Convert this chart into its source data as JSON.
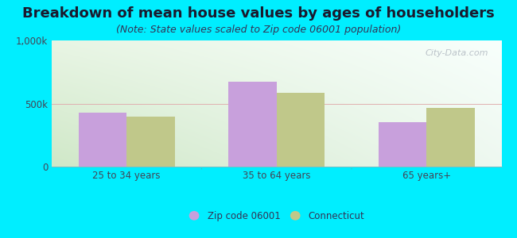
{
  "title": "Breakdown of mean house values by ages of householders",
  "subtitle": "(Note: State values scaled to Zip code 06001 population)",
  "categories": [
    "25 to 34 years",
    "35 to 64 years",
    "65 years+"
  ],
  "zip_values": [
    430000,
    670000,
    355000
  ],
  "ct_values": [
    395000,
    585000,
    465000
  ],
  "ylim": [
    0,
    1000000
  ],
  "yticks": [
    0,
    500000,
    1000000
  ],
  "ytick_labels": [
    "0",
    "500k",
    "1,000k"
  ],
  "zip_color": "#c8a0dc",
  "ct_color": "#c0c88a",
  "background_color": "#00eeff",
  "bar_width": 0.32,
  "legend_zip": "Zip code 06001",
  "legend_ct": "Connecticut",
  "title_fontsize": 13,
  "subtitle_fontsize": 9,
  "tick_label_fontsize": 8.5,
  "watermark": "City-Data.com",
  "gradient_top": "#f5fffb",
  "gradient_bottom": "#d8efd0",
  "gradient_right": "#f0f8ff"
}
